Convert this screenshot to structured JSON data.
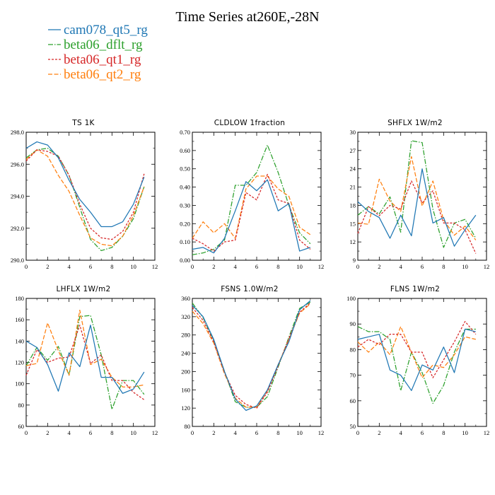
{
  "title": "Time Series at260E,-28N",
  "legend": [
    {
      "name": "cam078_qt5_rg",
      "color": "#1f77b4",
      "dash": ""
    },
    {
      "name": "beta06_dflt_rg",
      "color": "#2ca02c",
      "dash": "7,2,1.5,2"
    },
    {
      "name": "beta06_qt1_rg",
      "color": "#d62728",
      "dash": "3,2"
    },
    {
      "name": "beta06_qt2_rg",
      "color": "#ff7f0e",
      "dash": "6,2.5"
    }
  ],
  "chart_data": [
    {
      "type": "line",
      "title": "TS   1K",
      "x": [
        0,
        1,
        2,
        3,
        4,
        5,
        6,
        7,
        8,
        9,
        10,
        11
      ],
      "xlim": [
        0,
        12
      ],
      "xticks": [
        "0",
        "2",
        "4",
        "6",
        "8",
        "10",
        "12"
      ],
      "ylim": [
        290,
        298
      ],
      "yticks": [
        "290.0",
        "292.0",
        "294.0",
        "296.0",
        "298.0"
      ],
      "series": [
        {
          "name": "cam078_qt5_rg",
          "values": [
            297.0,
            297.4,
            297.2,
            296.4,
            295.0,
            293.8,
            293.0,
            292.1,
            292.1,
            292.4,
            293.5,
            295.2
          ]
        },
        {
          "name": "beta06_dflt_rg",
          "values": [
            296.4,
            296.9,
            297.0,
            296.5,
            295.3,
            293.3,
            291.3,
            290.6,
            290.8,
            291.5,
            292.6,
            294.6
          ]
        },
        {
          "name": "beta06_qt1_rg",
          "values": [
            296.2,
            296.9,
            296.8,
            296.5,
            295.3,
            293.5,
            292.0,
            291.4,
            291.3,
            291.8,
            293.0,
            295.4
          ]
        },
        {
          "name": "beta06_qt2_rg",
          "values": [
            296.3,
            296.9,
            296.5,
            295.3,
            294.3,
            292.8,
            291.4,
            291.0,
            290.9,
            291.5,
            292.8,
            294.6
          ]
        }
      ]
    },
    {
      "type": "line",
      "title": "CLDLOW   1fraction",
      "x": [
        0,
        1,
        2,
        3,
        4,
        5,
        6,
        7,
        8,
        9,
        10,
        11
      ],
      "xlim": [
        0,
        12
      ],
      "xticks": [
        "0",
        "2",
        "4",
        "6",
        "8",
        "10",
        "12"
      ],
      "ylim": [
        0,
        0.7
      ],
      "yticks": [
        "0.00",
        "0.10",
        "0.20",
        "0.30",
        "0.40",
        "0.50",
        "0.60",
        "0.70"
      ],
      "series": [
        {
          "name": "cam078_qt5_rg",
          "values": [
            0.06,
            0.07,
            0.04,
            0.12,
            0.27,
            0.43,
            0.38,
            0.44,
            0.27,
            0.31,
            0.05,
            0.07
          ]
        },
        {
          "name": "beta06_dflt_rg",
          "values": [
            0.03,
            0.04,
            0.06,
            0.11,
            0.41,
            0.41,
            0.48,
            0.63,
            0.48,
            0.3,
            0.15,
            0.09
          ]
        },
        {
          "name": "beta06_qt1_rg",
          "values": [
            0.12,
            0.09,
            0.05,
            0.1,
            0.11,
            0.37,
            0.33,
            0.47,
            0.33,
            0.31,
            0.11,
            0.06
          ]
        },
        {
          "name": "beta06_qt2_rg",
          "values": [
            0.12,
            0.21,
            0.15,
            0.2,
            0.12,
            0.39,
            0.46,
            0.46,
            0.39,
            0.35,
            0.18,
            0.14
          ]
        }
      ]
    },
    {
      "type": "line",
      "title": "SHFLX   1W/m2",
      "x": [
        0,
        1,
        2,
        3,
        4,
        5,
        6,
        7,
        8,
        9,
        10,
        11
      ],
      "xlim": [
        0,
        12
      ],
      "xticks": [
        "0",
        "2",
        "4",
        "6",
        "8",
        "10",
        "12"
      ],
      "ylim": [
        9,
        30
      ],
      "yticks": [
        "9",
        "12",
        "15",
        "18",
        "21",
        "24",
        "27",
        "30"
      ],
      "series": [
        {
          "name": "cam078_qt5_rg",
          "values": [
            18.6,
            17.0,
            16.0,
            12.6,
            16.4,
            13.0,
            24.0,
            15.1,
            16.0,
            11.3,
            14.0,
            16.4
          ]
        },
        {
          "name": "beta06_dflt_rg",
          "values": [
            16.4,
            17.8,
            16.6,
            19.4,
            13.6,
            28.6,
            28.3,
            17.4,
            11.1,
            15.1,
            15.7,
            12.6
          ]
        },
        {
          "name": "beta06_qt1_rg",
          "values": [
            13.4,
            17.8,
            16.3,
            18.0,
            17.4,
            22.0,
            18.4,
            20.4,
            15.1,
            15.1,
            14.0,
            10.1
          ]
        },
        {
          "name": "beta06_qt2_rg",
          "values": [
            15.1,
            14.9,
            22.3,
            18.7,
            17.0,
            26.0,
            17.9,
            22.0,
            15.6,
            13.1,
            14.6,
            12.3
          ]
        }
      ]
    },
    {
      "type": "line",
      "title": "LHFLX   1W/m2",
      "x": [
        0,
        1,
        2,
        3,
        4,
        5,
        6,
        7,
        8,
        9,
        10,
        11
      ],
      "xlim": [
        0,
        12
      ],
      "xticks": [
        "0",
        "2",
        "4",
        "6",
        "8",
        "10",
        "12"
      ],
      "ylim": [
        60,
        180
      ],
      "yticks": [
        "60",
        "80",
        "100",
        "120",
        "140",
        "160",
        "180"
      ],
      "series": [
        {
          "name": "cam078_qt5_rg",
          "values": [
            140,
            134,
            118,
            93,
            129,
            116,
            155,
            106,
            106,
            91,
            95,
            111
          ]
        },
        {
          "name": "beta06_dflt_rg",
          "values": [
            117,
            134,
            122,
            135,
            108,
            163,
            164,
            127,
            76,
            103,
            103,
            90
          ]
        },
        {
          "name": "beta06_qt1_rg",
          "values": [
            108,
            132,
            120,
            124,
            125,
            155,
            119,
            127,
            103,
            103,
            92,
            85
          ]
        },
        {
          "name": "beta06_qt2_rg",
          "values": [
            117,
            119,
            157,
            131,
            108,
            169,
            118,
            123,
            106,
            97,
            97,
            99
          ]
        }
      ]
    },
    {
      "type": "line",
      "title": "FSNS   1.0W/m2",
      "x": [
        0,
        1,
        2,
        3,
        4,
        5,
        6,
        7,
        8,
        9,
        10,
        11
      ],
      "xlim": [
        0,
        12
      ],
      "xticks": [
        "0",
        "2",
        "4",
        "6",
        "8",
        "10",
        "12"
      ],
      "ylim": [
        80,
        360
      ],
      "yticks": [
        "80",
        "120",
        "160",
        "200",
        "240",
        "280",
        "320",
        "360"
      ],
      "series": [
        {
          "name": "cam078_qt5_rg",
          "values": [
            345,
            320,
            270,
            200,
            140,
            115,
            125,
            160,
            215,
            265,
            335,
            355
          ]
        },
        {
          "name": "beta06_dflt_rg",
          "values": [
            350,
            318,
            268,
            200,
            134,
            122,
            122,
            145,
            210,
            275,
            338,
            352
          ]
        },
        {
          "name": "beta06_qt1_rg",
          "values": [
            340,
            312,
            265,
            198,
            148,
            128,
            120,
            155,
            212,
            272,
            330,
            350
          ]
        },
        {
          "name": "beta06_qt2_rg",
          "values": [
            332,
            305,
            262,
            195,
            142,
            122,
            122,
            158,
            215,
            270,
            328,
            348
          ]
        }
      ]
    },
    {
      "type": "line",
      "title": "FLNS   1W/m2",
      "x": [
        0,
        1,
        2,
        3,
        4,
        5,
        6,
        7,
        8,
        9,
        10,
        11
      ],
      "xlim": [
        0,
        12
      ],
      "xticks": [
        "0",
        "2",
        "4",
        "6",
        "8",
        "10",
        "12"
      ],
      "ylim": [
        50,
        100
      ],
      "yticks": [
        "50",
        "60",
        "70",
        "80",
        "90",
        "100"
      ],
      "series": [
        {
          "name": "cam078_qt5_rg",
          "values": [
            84,
            85,
            86,
            72,
            70,
            64,
            74,
            72,
            81,
            71,
            88,
            87
          ]
        },
        {
          "name": "beta06_dflt_rg",
          "values": [
            89,
            87,
            87,
            84,
            64,
            79,
            71,
            59,
            66,
            79,
            88,
            88
          ]
        },
        {
          "name": "beta06_qt1_rg",
          "values": [
            81,
            84,
            82,
            86,
            86,
            79,
            79,
            69,
            76,
            83,
            91,
            86
          ]
        },
        {
          "name": "beta06_qt2_rg",
          "values": [
            83,
            79,
            83,
            78,
            89,
            79,
            69,
            74,
            73,
            78,
            85,
            84
          ]
        }
      ]
    }
  ]
}
